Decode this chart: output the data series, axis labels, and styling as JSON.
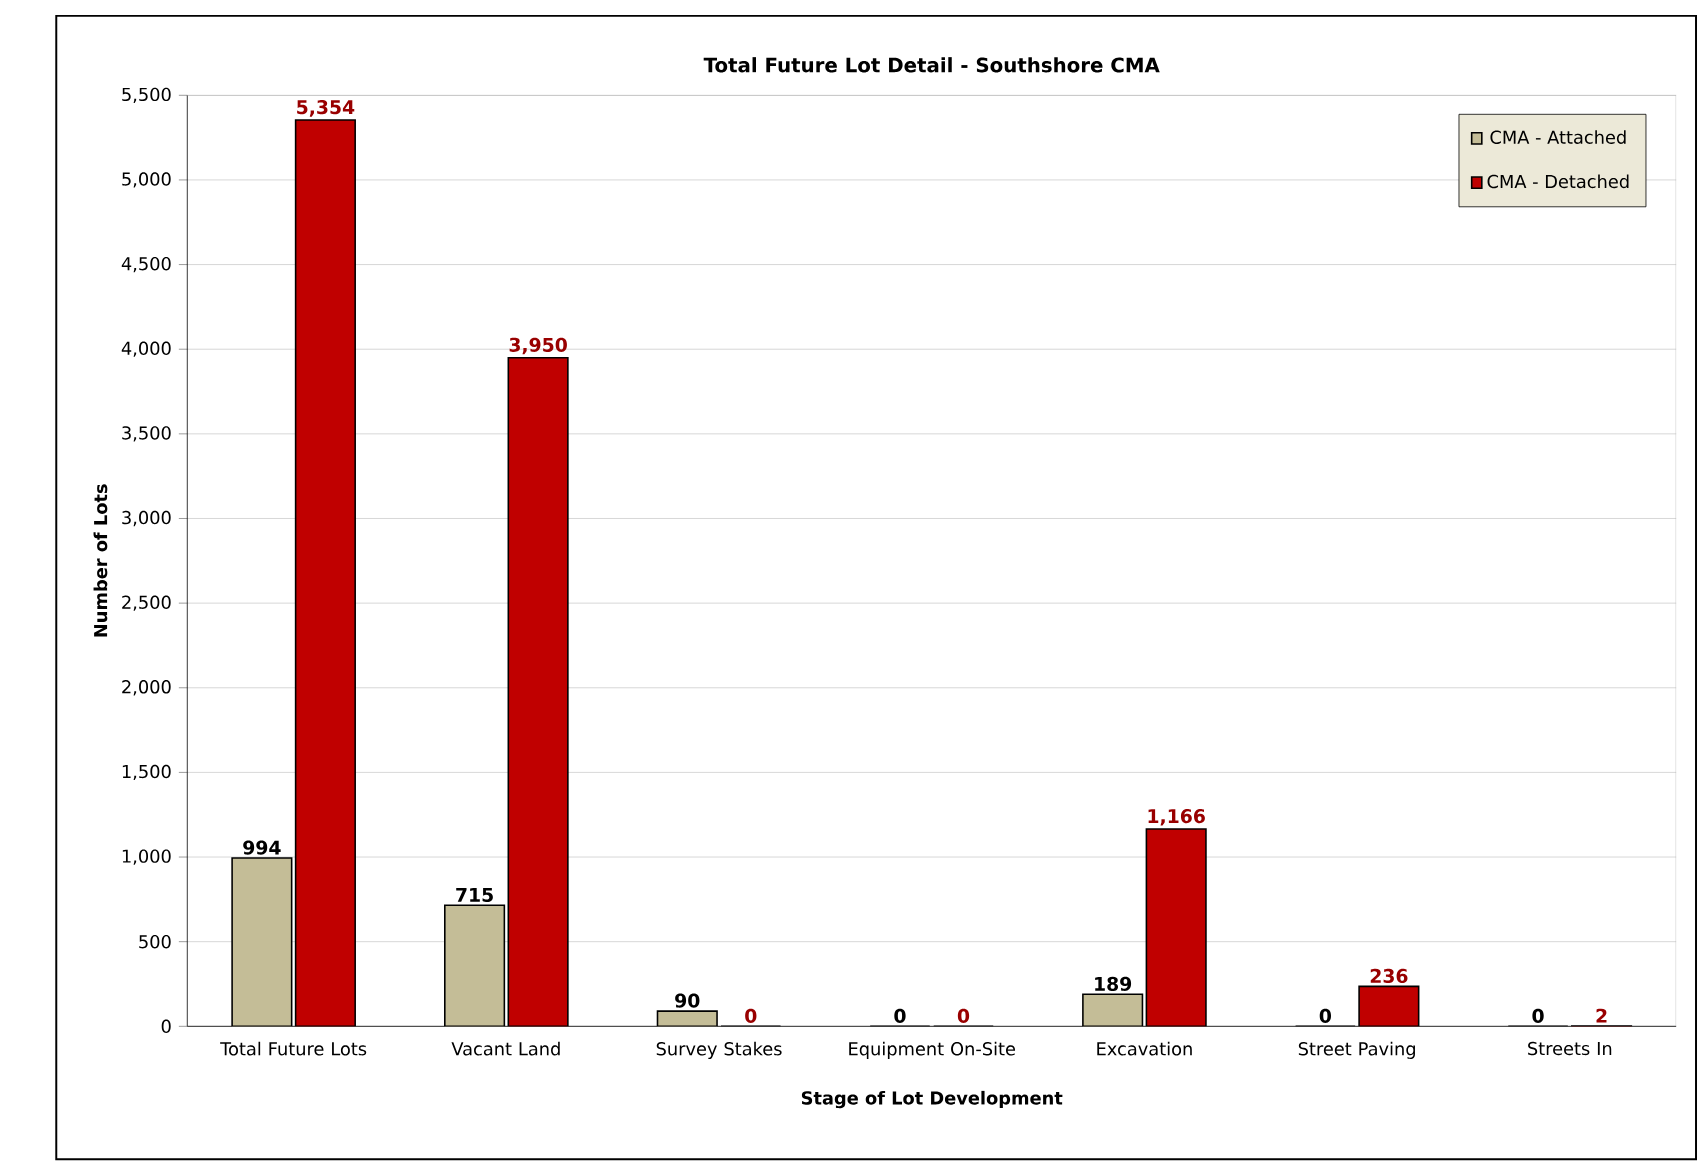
{
  "chart_data": {
    "type": "bar",
    "title": "Total Future Lot Detail - Southshore CMA",
    "xlabel": "Stage of Lot Development",
    "ylabel": "Number of Lots",
    "categories": [
      "Total Future Lots",
      "Vacant Land",
      "Survey Stakes",
      "Equipment On-Site",
      "Excavation",
      "Street Paving",
      "Streets In"
    ],
    "series": [
      {
        "name": "CMA - Attached",
        "color": "#c4bd97",
        "values": [
          994,
          715,
          90,
          0,
          189,
          0,
          0
        ],
        "value_labels": [
          "994",
          "715",
          "90",
          "0",
          "189",
          "0",
          "0"
        ]
      },
      {
        "name": "CMA - Detached",
        "color": "#c00000",
        "values": [
          5354,
          3950,
          0,
          0,
          1166,
          236,
          2
        ],
        "value_labels": [
          "5,354",
          "3,950",
          "0",
          "0",
          "1,166",
          "236",
          "2"
        ]
      }
    ],
    "ylim": [
      0,
      5500
    ],
    "yticks": [
      {
        "value": 0,
        "label": "0"
      },
      {
        "value": 500,
        "label": "500"
      },
      {
        "value": 1000,
        "label": "1,000"
      },
      {
        "value": 1500,
        "label": "1,500"
      },
      {
        "value": 2000,
        "label": "2,000"
      },
      {
        "value": 2500,
        "label": "2,500"
      },
      {
        "value": 3000,
        "label": "3,000"
      },
      {
        "value": 3500,
        "label": "3,500"
      },
      {
        "value": 4000,
        "label": "4,000"
      },
      {
        "value": 4500,
        "label": "4,500"
      },
      {
        "value": 5000,
        "label": "5,000"
      },
      {
        "value": 5500,
        "label": "5,500"
      }
    ],
    "grid": "y",
    "legend": "top right"
  }
}
